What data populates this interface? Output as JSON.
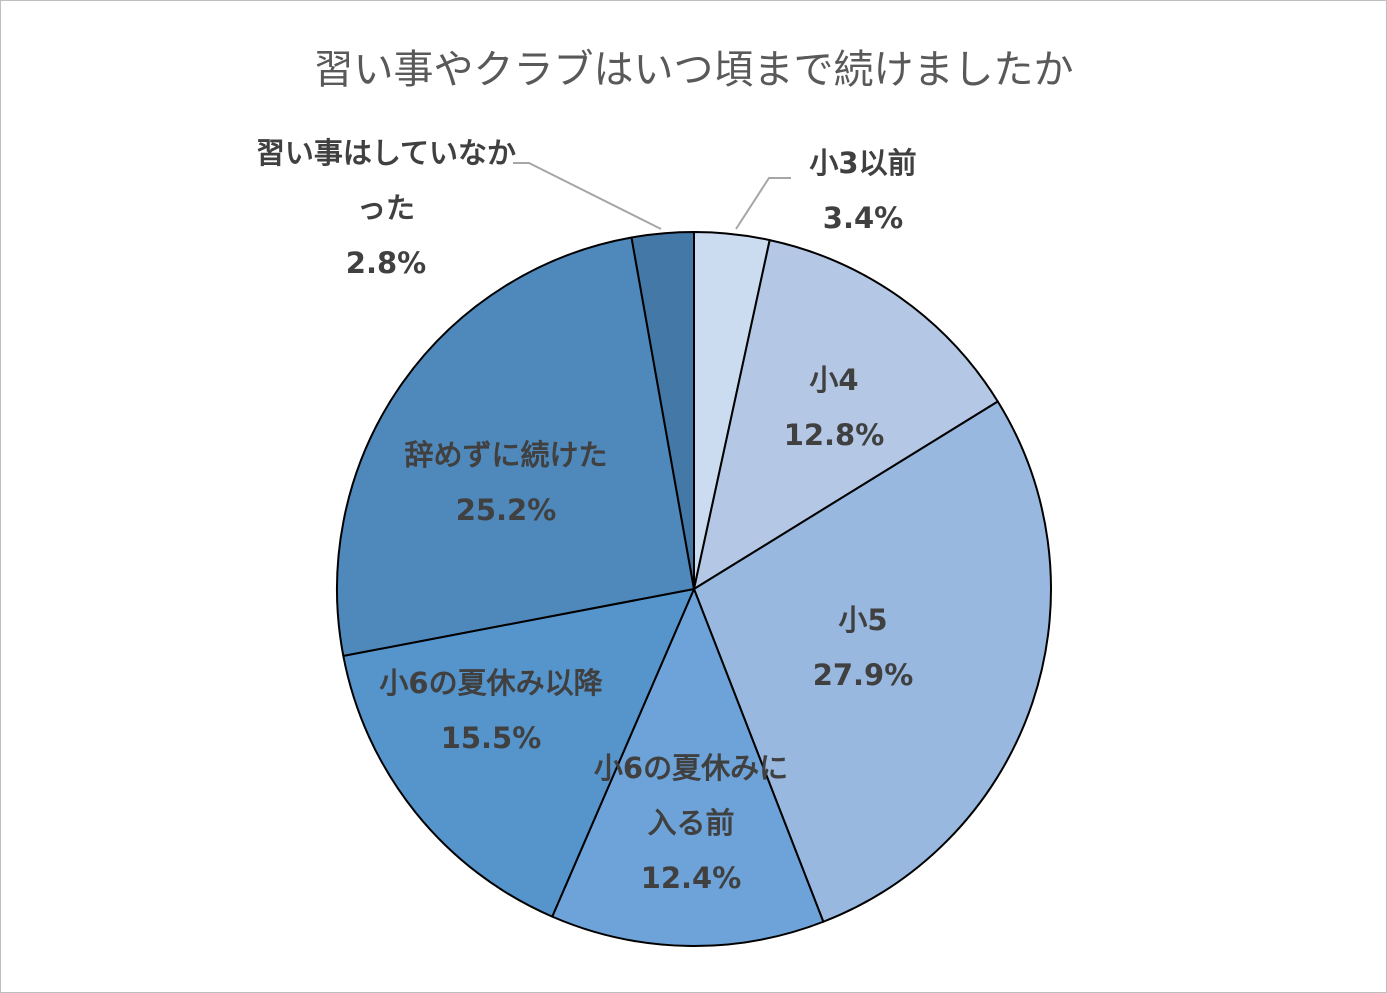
{
  "chart_data": {
    "type": "pie",
    "title": "習い事やクラブはいつ頃まで続けましたか",
    "categories": [
      "小3以前",
      "小4",
      "小5",
      "小6の夏休みに入る前",
      "小6の夏休み以降",
      "辞めずに続けた",
      "習い事はしていなかった"
    ],
    "values": [
      3.4,
      12.8,
      27.9,
      12.4,
      15.5,
      25.2,
      2.8
    ],
    "value_labels": [
      "3.4%",
      "12.8%",
      "27.9%",
      "12.4%",
      "15.5%",
      "25.2%",
      "2.8%"
    ],
    "colors": [
      "#cbdbf0",
      "#b4c8e6",
      "#98b8df",
      "#6ea3d9",
      "#5694cc",
      "#4f89bb",
      "#4478a6"
    ]
  }
}
